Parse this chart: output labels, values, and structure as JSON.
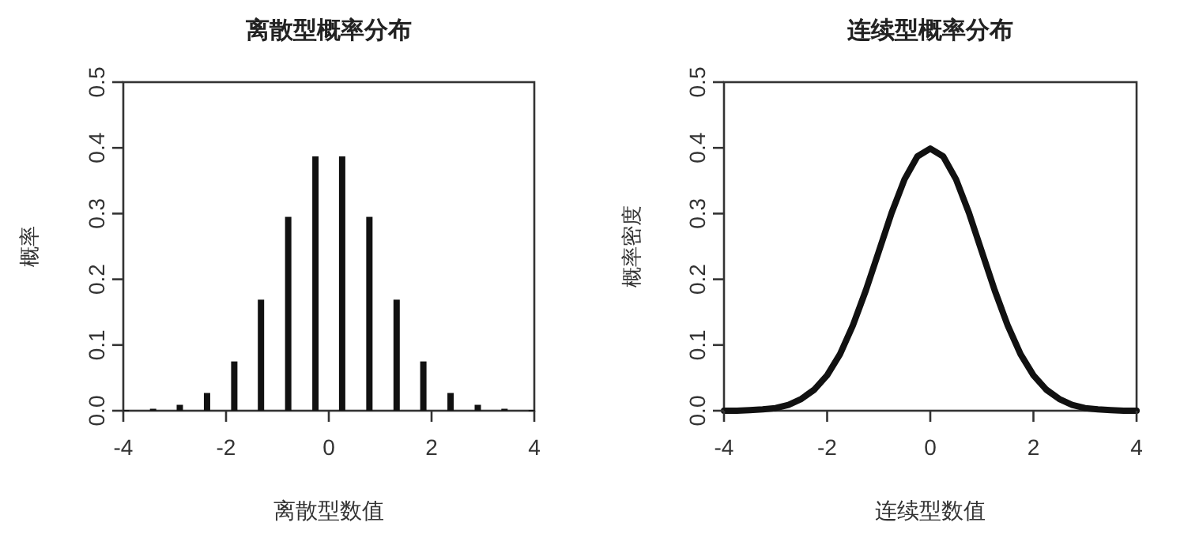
{
  "chart_data": [
    {
      "type": "bar",
      "title": "离散型概率分布",
      "xlabel": "离散型数值",
      "ylabel": "概率",
      "color": "#111111",
      "x": [
        -3.95,
        -3.42,
        -2.9,
        -2.37,
        -1.84,
        -1.32,
        -0.79,
        -0.26,
        0.26,
        0.79,
        1.32,
        1.84,
        2.37,
        2.9,
        3.42,
        3.95
      ],
      "values": [
        0.001,
        0.003,
        0.009,
        0.027,
        0.075,
        0.169,
        0.295,
        0.387,
        0.387,
        0.295,
        0.169,
        0.075,
        0.027,
        0.009,
        0.003,
        0.001
      ],
      "xlim": [
        -4,
        4
      ],
      "xticks": [
        -4,
        -2,
        0,
        2,
        4
      ],
      "ylim": [
        0,
        0.5
      ],
      "yticks": [
        {
          "value": 0,
          "label": "0.0"
        },
        0.1,
        0.2,
        0.3,
        0.4,
        0.5
      ],
      "grid": false
    },
    {
      "type": "line",
      "title": "连续型概率分布",
      "xlabel": "连续型数值",
      "ylabel": "概率密度",
      "color": "#111111",
      "marker": "none",
      "line_style": "solid",
      "x": [
        -4,
        -3.75,
        -3.5,
        -3.25,
        -3,
        -2.75,
        -2.5,
        -2.25,
        -2,
        -1.75,
        -1.5,
        -1.25,
        -1,
        -0.75,
        -0.5,
        -0.25,
        0,
        0.25,
        0.5,
        0.75,
        1,
        1.25,
        1.5,
        1.75,
        2,
        2.25,
        2.5,
        2.75,
        3,
        3.25,
        3.5,
        3.75,
        4
      ],
      "values": [
        0.0,
        0.0,
        0.001,
        0.002,
        0.004,
        0.009,
        0.018,
        0.032,
        0.054,
        0.086,
        0.13,
        0.183,
        0.242,
        0.301,
        0.352,
        0.387,
        0.399,
        0.387,
        0.352,
        0.301,
        0.242,
        0.183,
        0.13,
        0.086,
        0.054,
        0.032,
        0.018,
        0.009,
        0.004,
        0.002,
        0.001,
        0.0,
        0.0
      ],
      "xlim": [
        -4,
        4
      ],
      "xticks": [
        -4,
        -2,
        0,
        2,
        4
      ],
      "ylim": [
        0,
        0.5
      ],
      "yticks": [
        {
          "value": 0,
          "label": "0.0"
        },
        0.1,
        0.2,
        0.3,
        0.4,
        0.5
      ],
      "grid": false
    }
  ]
}
